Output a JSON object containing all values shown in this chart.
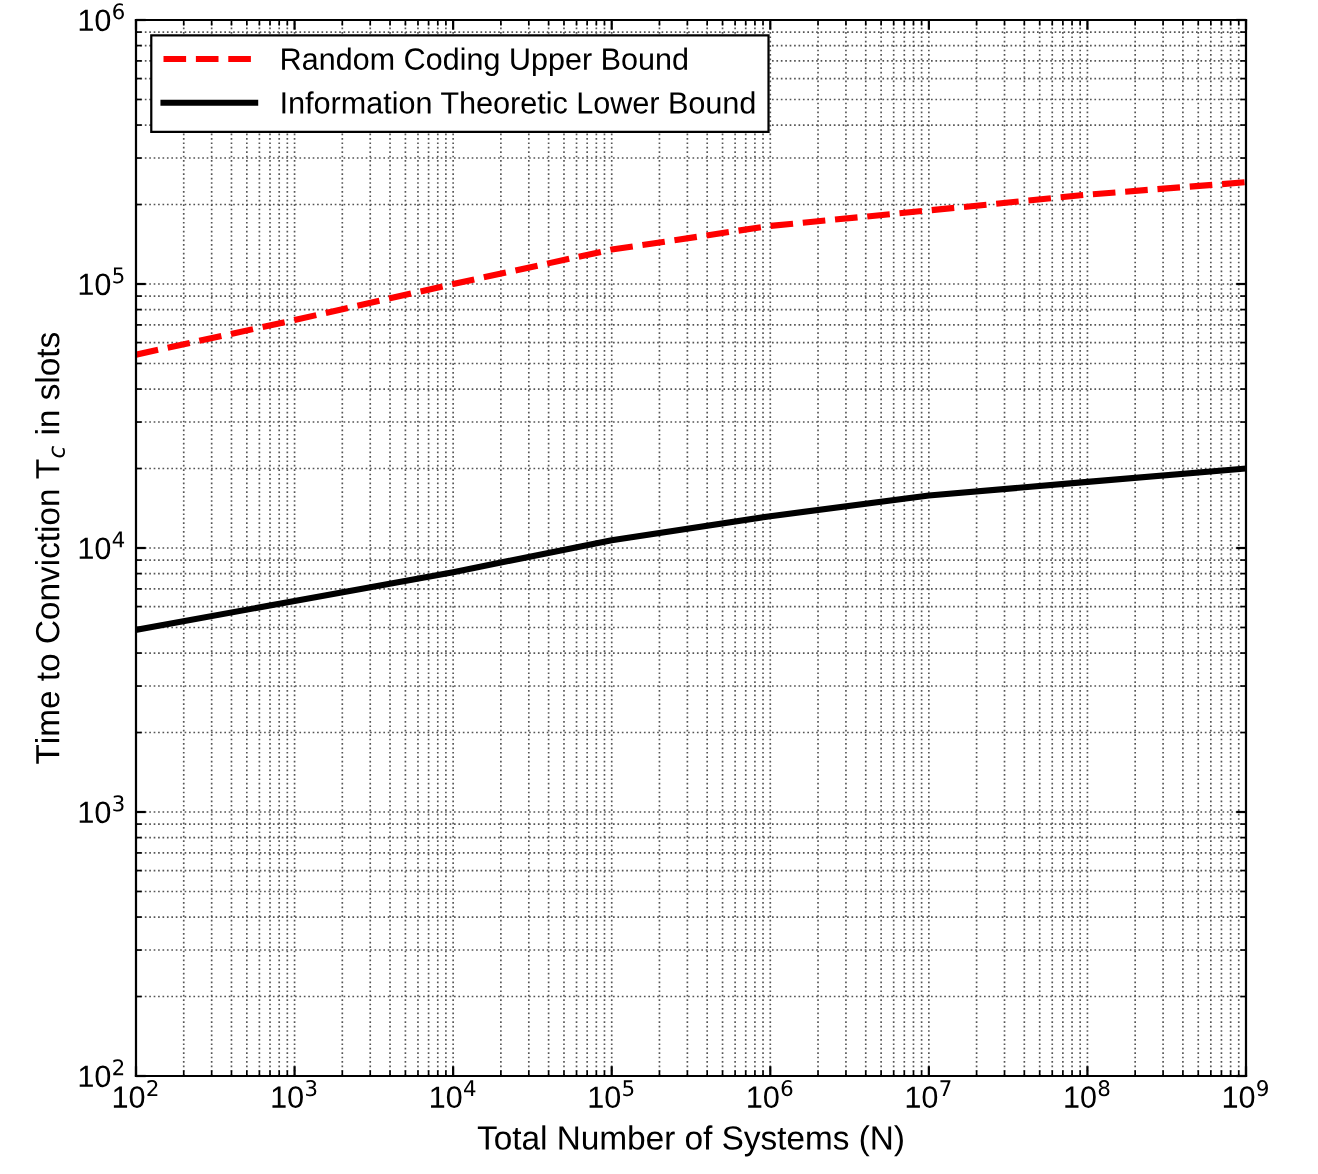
{
  "chart_data": {
    "type": "line",
    "xlabel": "Total Number of Systems (N)",
    "ylabel": "Time to Conviction T$_{c}$ in slots",
    "log": "xy",
    "grid": true,
    "legend": "top left",
    "x": [
      100,
      1000,
      10000,
      100000,
      1000000,
      10000000,
      100000000,
      1000000000
    ],
    "series": [
      {
        "name": "Random Coding Upper Bound",
        "color": "#ff0000",
        "line_style": "dashed",
        "values": [
          54000,
          73000,
          100000,
          135000,
          166000,
          190000,
          218000,
          243000
        ]
      },
      {
        "name": "Information Theoretic Lower Bound",
        "color": "#000000",
        "line_style": "solid",
        "values": [
          4900,
          6300,
          8100,
          10700,
          13200,
          15800,
          17800,
          20000
        ]
      }
    ],
    "xlim": [
      100,
      1000000000
    ],
    "ylim": [
      100,
      1000000
    ],
    "xticks": [
      {
        "value": 100,
        "label": "10$^{2}$"
      },
      {
        "value": 1000,
        "label": "10$^{3}$"
      },
      {
        "value": 10000,
        "label": "10$^{4}$"
      },
      {
        "value": 100000,
        "label": "10$^{5}$"
      },
      {
        "value": 1000000,
        "label": "10$^{6}$"
      },
      {
        "value": 10000000,
        "label": "10$^{7}$"
      },
      {
        "value": 100000000,
        "label": "10$^{8}$"
      },
      {
        "value": 1000000000,
        "label": "10$^{9}$"
      }
    ],
    "yticks": [
      {
        "value": 100,
        "label": "10$^{2}$"
      },
      {
        "value": 1000,
        "label": "10$^{3}$"
      },
      {
        "value": 10000,
        "label": "10$^{4}$"
      },
      {
        "value": 100000,
        "label": "10$^{5}$"
      },
      {
        "value": 1000000,
        "label": "10$^{6}$"
      }
    ]
  }
}
